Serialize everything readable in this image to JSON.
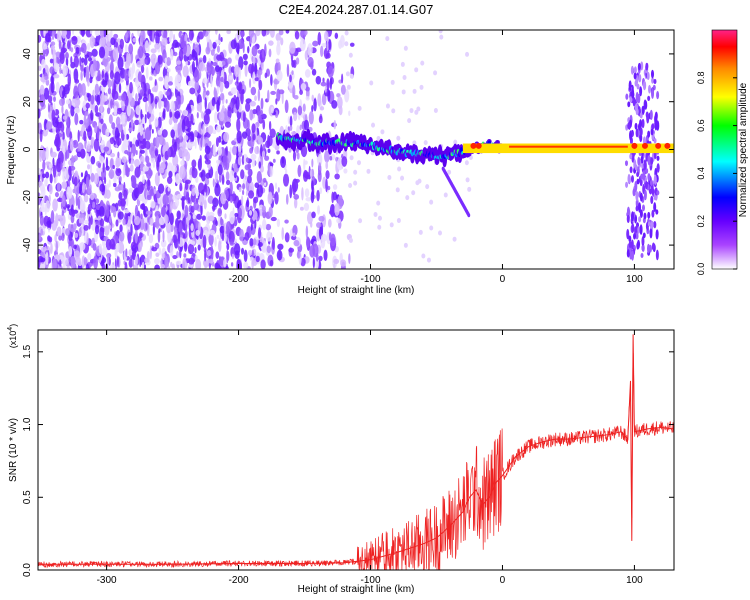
{
  "title": "C2E4.2024.287.01.14.G07",
  "chart_data": [
    {
      "type": "heatmap",
      "name": "spectrogram",
      "xlabel": "Height of straight line (km)",
      "ylabel": "Frequency (Hz)",
      "xlim": [
        -352,
        130
      ],
      "ylim": [
        -50,
        50
      ],
      "xticks": [
        -300,
        -200,
        -100,
        0,
        100
      ],
      "xtick_labels": [
        "-300",
        "-200",
        "-100",
        "0",
        "100"
      ],
      "yticks": [
        -40,
        -20,
        0,
        20,
        40
      ],
      "ytick_labels": [
        "-40",
        "-20",
        "0",
        "20",
        "40"
      ],
      "colorbar": {
        "label": "Normalized spectral amplitude",
        "range": [
          0,
          1
        ],
        "ticks": [
          0,
          0.2,
          0.4,
          0.6,
          0.8
        ],
        "tick_labels": [
          "0.0",
          "0.2",
          "0.4",
          "0.6",
          "0.8"
        ],
        "colors": [
          "#ffffff",
          "#8800ff",
          "#0000ff",
          "#00ffff",
          "#00ff00",
          "#ffff00",
          "#ff8800",
          "#ff0000",
          "#ff0088"
        ]
      },
      "ridge": {
        "x": [
          -170,
          -140,
          -120,
          -100,
          -80,
          -60,
          -45,
          -30,
          -10,
          0,
          20,
          60,
          95,
          100,
          110,
          130
        ],
        "y": [
          5,
          3,
          3,
          2,
          -1,
          -2,
          -3,
          -1,
          2,
          1,
          0.5,
          0.5,
          0.5,
          0.5,
          0.5,
          0.5
        ]
      }
    },
    {
      "type": "line",
      "name": "snr",
      "xlabel": "Height of straight line (km)",
      "ylabel": "SNR (10 * v/v)",
      "multiplier": "(x10",
      "multiplier_exp": "4",
      "multiplier_close": ")",
      "xlim": [
        -352,
        130
      ],
      "ylim": [
        0,
        1.65
      ],
      "xticks": [
        -300,
        -200,
        -100,
        0,
        100
      ],
      "xtick_labels": [
        "-300",
        "-200",
        "-100",
        "0",
        "100"
      ],
      "yticks": [
        0,
        0.5,
        1.0,
        1.5
      ],
      "ytick_labels": [
        "0.0",
        "0.5",
        "1.0",
        "1.5"
      ],
      "color": "#ee2222",
      "x": [
        -352,
        -300,
        -250,
        -200,
        -150,
        -120,
        -100,
        -80,
        -60,
        -50,
        -40,
        -30,
        -25,
        -20,
        -15,
        -10,
        -5,
        0,
        10,
        20,
        30,
        40,
        50,
        60,
        70,
        80,
        90,
        95,
        97,
        98,
        99,
        100,
        105,
        110,
        120,
        130
      ],
      "y": [
        0.04,
        0.04,
        0.04,
        0.045,
        0.045,
        0.05,
        0.07,
        0.12,
        0.18,
        0.22,
        0.3,
        0.4,
        0.5,
        0.55,
        0.45,
        0.5,
        0.6,
        0.65,
        0.78,
        0.85,
        0.88,
        0.9,
        0.9,
        0.91,
        0.92,
        0.93,
        0.95,
        0.9,
        1.3,
        0.2,
        1.62,
        0.95,
        0.96,
        0.97,
        0.98,
        0.97
      ]
    }
  ]
}
